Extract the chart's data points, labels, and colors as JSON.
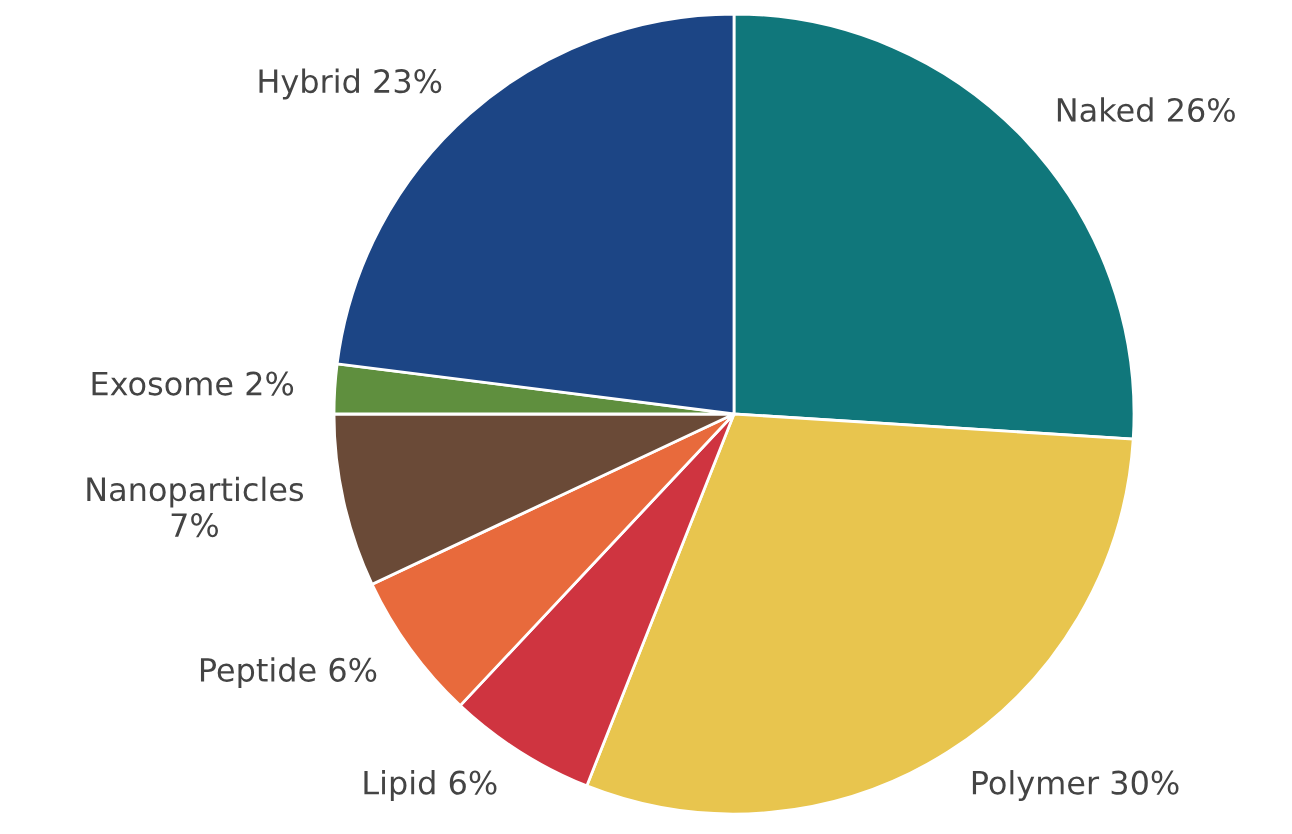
{
  "chart_data": {
    "type": "pie",
    "categories": [
      "Naked",
      "Polymer",
      "Lipid",
      "Peptide",
      "Nanoparticles",
      "Exosome",
      "Hybrid"
    ],
    "values": [
      26,
      30,
      6,
      6,
      7,
      2,
      23
    ],
    "value_labels": [
      "26%",
      "30%",
      "6%",
      "6%",
      "7%",
      "2%",
      "23%"
    ],
    "colors": [
      "#10777b",
      "#e8c54e",
      "#cf3440",
      "#e86a3c",
      "#6a4a37",
      "#5f8f3e",
      "#1c4585"
    ]
  }
}
